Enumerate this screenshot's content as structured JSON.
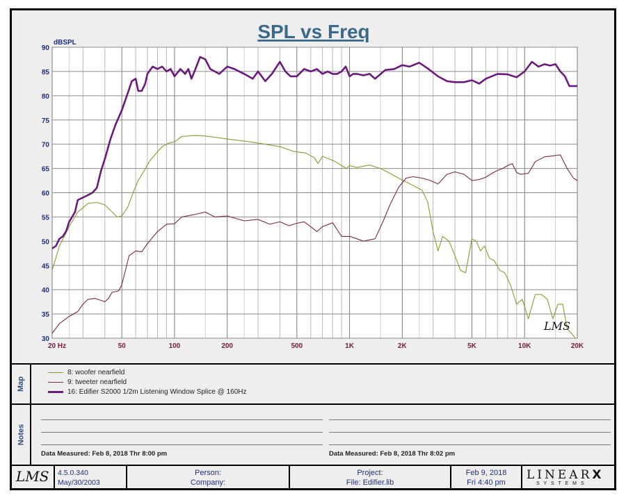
{
  "chart_data": {
    "type": "line",
    "title": "SPL vs Freq",
    "ylabel": "dBSPL",
    "xscale": "log",
    "xlim": [
      20,
      20000
    ],
    "ylim": [
      30,
      90
    ],
    "grid": true,
    "x_ticks": [
      {
        "value": 20,
        "label": "20  Hz"
      },
      {
        "value": 50,
        "label": "50"
      },
      {
        "value": 100,
        "label": "100"
      },
      {
        "value": 200,
        "label": "200"
      },
      {
        "value": 500,
        "label": "500"
      },
      {
        "value": 1000,
        "label": "1K"
      },
      {
        "value": 2000,
        "label": "2K"
      },
      {
        "value": 5000,
        "label": "5K"
      },
      {
        "value": 10000,
        "label": "10K"
      },
      {
        "value": 20000,
        "label": "20K"
      }
    ],
    "y_ticks": [
      30,
      35,
      40,
      45,
      50,
      55,
      60,
      65,
      70,
      75,
      80,
      85,
      90
    ],
    "series": [
      {
        "name": "8: woofer nearfield",
        "color": "#8a9a32",
        "x": [
          20,
          22,
          25,
          28,
          32,
          36,
          40,
          44,
          47,
          50,
          54,
          58,
          62,
          67,
          72,
          78,
          85,
          92,
          100,
          110,
          130,
          150,
          180,
          220,
          270,
          330,
          400,
          480,
          560,
          630,
          660,
          700,
          760,
          830,
          900,
          960,
          1000,
          1100,
          1300,
          1500,
          1700,
          2000,
          2300,
          2600,
          2800,
          3000,
          3200,
          3400,
          3700,
          4000,
          4300,
          4600,
          5000,
          5300,
          5600,
          5900,
          6300,
          6700,
          7200,
          7700,
          8300,
          9000,
          9700,
          10000,
          10500,
          11500,
          12500,
          13500,
          14500,
          15500,
          16500,
          17500,
          18500,
          19500,
          20000
        ],
        "y": [
          44,
          49,
          53,
          56,
          57.8,
          58,
          57.5,
          56,
          55,
          55.2,
          57,
          60,
          62.5,
          64.5,
          66.5,
          68,
          69.5,
          70.2,
          70.5,
          71.6,
          71.8,
          71.7,
          71.3,
          70.9,
          70.5,
          70,
          69.5,
          68.5,
          68.2,
          67.2,
          66,
          67.5,
          67,
          66.4,
          65.6,
          65,
          65.6,
          65.2,
          65.7,
          65,
          64,
          62.6,
          61.5,
          60.5,
          58,
          52,
          48,
          51,
          50,
          47,
          44,
          43.5,
          50.5,
          50,
          48,
          49,
          46.5,
          46,
          44,
          43.5,
          41,
          37,
          38,
          36.5,
          34,
          39,
          39,
          38,
          34,
          37,
          37,
          32,
          31,
          30,
          30
        ]
      },
      {
        "name": "9: tweeter nearfield",
        "color": "#7a2a3a",
        "x": [
          20,
          22,
          25,
          28,
          30,
          32,
          35,
          38,
          40,
          42,
          44,
          46,
          48,
          50,
          55,
          60,
          65,
          70,
          80,
          90,
          100,
          110,
          130,
          150,
          170,
          200,
          250,
          300,
          350,
          400,
          450,
          500,
          550,
          600,
          650,
          700,
          800,
          900,
          1000,
          1100,
          1200,
          1400,
          1550,
          1700,
          1900,
          2100,
          2300,
          2600,
          2900,
          3200,
          3600,
          4000,
          4500,
          5000,
          5500,
          6000,
          6500,
          7000,
          7500,
          8000,
          8500,
          9000,
          9500,
          10500,
          11500,
          13000,
          14500,
          16000,
          17500,
          19000,
          20000
        ],
        "y": [
          31,
          33,
          34.5,
          35.5,
          37,
          38,
          38.2,
          37.8,
          37.5,
          38.2,
          39.5,
          39.6,
          39.8,
          41,
          47,
          48,
          47.8,
          49.5,
          52,
          53.5,
          53.6,
          55,
          55.5,
          56,
          55,
          55.2,
          54.2,
          54.5,
          53.5,
          54,
          53.2,
          53.7,
          54,
          53,
          52,
          53,
          53.8,
          51,
          51,
          50.5,
          50,
          50.5,
          54,
          57.5,
          61,
          63,
          63.3,
          63,
          62.5,
          61.8,
          63.8,
          64.3,
          63.8,
          62.5,
          62.7,
          63.2,
          64,
          64.6,
          65,
          65.6,
          66,
          64.2,
          63.8,
          64,
          66.4,
          67.4,
          67.6,
          67.8,
          65,
          63,
          62.5
        ]
      },
      {
        "name": "16: Edifier S2000 1/2m Listening Window Splice @ 160Hz",
        "color": "#6a1a7a",
        "x": [
          20,
          21,
          22,
          23,
          24,
          25,
          26,
          27,
          28,
          30,
          32,
          34,
          36,
          38,
          40,
          43,
          46,
          50,
          54,
          57,
          60,
          62,
          65,
          68,
          70,
          75,
          80,
          85,
          90,
          95,
          100,
          108,
          115,
          120,
          125,
          130,
          140,
          150,
          160,
          180,
          200,
          220,
          250,
          280,
          300,
          330,
          360,
          400,
          430,
          460,
          500,
          550,
          600,
          650,
          700,
          750,
          800,
          850,
          900,
          950,
          1000,
          1050,
          1100,
          1200,
          1300,
          1400,
          1600,
          1800,
          2000,
          2200,
          2500,
          2800,
          3200,
          3600,
          4000,
          4500,
          5000,
          5500,
          6000,
          7000,
          8000,
          9000,
          10000,
          11000,
          12000,
          13000,
          14000,
          15000,
          16000,
          17000,
          18000,
          19000,
          20000
        ],
        "y": [
          48.5,
          49,
          50.5,
          51,
          52,
          54,
          55,
          56,
          58.5,
          59,
          59.5,
          60,
          61,
          64.5,
          67,
          71,
          74,
          77,
          80.5,
          83,
          83.5,
          81,
          81,
          82.5,
          84.5,
          86,
          85.5,
          86,
          85,
          85.5,
          84,
          85.5,
          84.5,
          85.5,
          83.5,
          85,
          88,
          87.5,
          85.5,
          84.5,
          86,
          85.5,
          84.5,
          83.5,
          85,
          83,
          84.5,
          87,
          85,
          84,
          84,
          85.5,
          85,
          85.5,
          84.5,
          85,
          84.5,
          84.5,
          85,
          86,
          84,
          84.5,
          84.5,
          84.2,
          84.5,
          83.5,
          85.3,
          85.5,
          86.3,
          86,
          86.8,
          85.6,
          84,
          83,
          82.8,
          82.8,
          83.2,
          82.5,
          83.5,
          84.5,
          84.4,
          83.8,
          85,
          87,
          86,
          86.5,
          86.2,
          86.5,
          85,
          84,
          82,
          82,
          82
        ]
      }
    ]
  },
  "map": {
    "label": "Map",
    "legend": [
      {
        "text": "8: woofer nearfield",
        "color": "#8a9a32",
        "weight": "thin"
      },
      {
        "text": "9: tweeter nearfield",
        "color": "#7a2a3a",
        "weight": "thin"
      },
      {
        "text": "16: Edifier S2000 1/2m Listening Window Splice @ 160Hz",
        "color": "#6a1a7a",
        "weight": "thick"
      }
    ]
  },
  "notes": {
    "label": "Notes",
    "left_measured": "Data Measured: Feb  8, 2018  Thr  8:00 pm",
    "right_measured": "Data Measured: Feb  8, 2018  Thr  8:02 pm"
  },
  "footer": {
    "logo_text": "LMS",
    "version": "4.5.0.340",
    "version_date": "May/30/2003",
    "person_label": "Person:",
    "company_label": "Company:",
    "project_label": "Project:",
    "file_label": "File: Edifier.lib",
    "date": "Feb  9, 2018",
    "day_time": "Fri  4:40 pm",
    "brand": "LINEAR",
    "brand_x": "X",
    "brand_sub": "S Y S T E M S"
  },
  "watermark": "LMS"
}
